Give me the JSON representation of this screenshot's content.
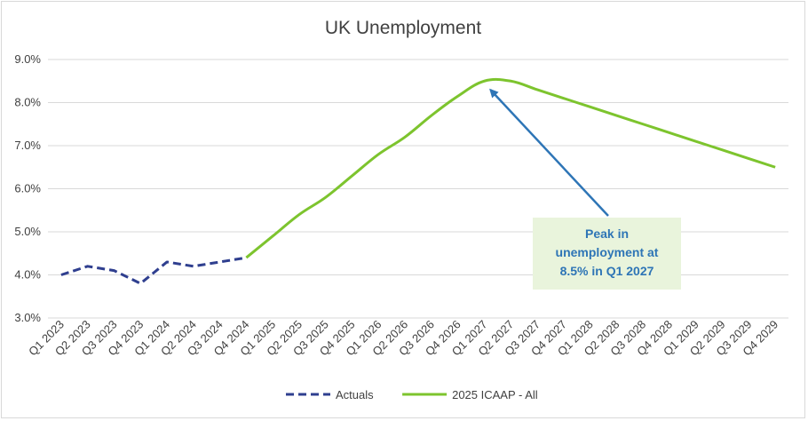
{
  "chart_data": {
    "type": "line",
    "title": "UK Unemployment",
    "xlabel": "",
    "ylabel": "",
    "ylim": [
      3.0,
      9.0
    ],
    "ytick_step": 1.0,
    "ytick_format": "percent_1dp",
    "grid": true,
    "legend_position": "bottom",
    "categories": [
      "Q1 2023",
      "Q2 2023",
      "Q3 2023",
      "Q4 2023",
      "Q1 2024",
      "Q2 2024",
      "Q3 2024",
      "Q4 2024",
      "Q1 2025",
      "Q2 2025",
      "Q3 2025",
      "Q4 2025",
      "Q1 2026",
      "Q2 2026",
      "Q3 2026",
      "Q4 2026",
      "Q1 2027",
      "Q2 2027",
      "Q3 2027",
      "Q4 2027",
      "Q1 2028",
      "Q2 2028",
      "Q3 2028",
      "Q4 2028",
      "Q1 2029",
      "Q2 2029",
      "Q3 2029",
      "Q4 2029"
    ],
    "series": [
      {
        "name": "Actuals",
        "color": "#2f3f8f",
        "dash": true,
        "values": [
          4.0,
          4.2,
          4.1,
          3.8,
          4.3,
          4.2,
          4.3,
          4.4,
          null,
          null,
          null,
          null,
          null,
          null,
          null,
          null,
          null,
          null,
          null,
          null,
          null,
          null,
          null,
          null,
          null,
          null,
          null,
          null
        ]
      },
      {
        "name": "2025 ICAAP - All",
        "color": "#7dc42e",
        "dash": false,
        "values": [
          null,
          null,
          null,
          null,
          null,
          null,
          null,
          4.4,
          4.9,
          5.4,
          5.8,
          6.3,
          6.8,
          7.2,
          7.7,
          8.15,
          8.5,
          8.5,
          8.3,
          8.1,
          7.9,
          7.7,
          7.5,
          7.3,
          7.1,
          6.9,
          6.7,
          6.5
        ]
      }
    ],
    "annotation": {
      "lines": [
        "Peak in",
        "unemployment at",
        "8.5% in Q1 2027"
      ],
      "arrow_target_category": "Q1 2027",
      "arrow_target_value": 8.5,
      "arrow_color": "#2e75b6",
      "box_color": "#e9f4dc",
      "text_color": "#2e75b6"
    }
  }
}
